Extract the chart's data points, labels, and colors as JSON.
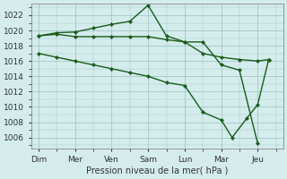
{
  "background_color": "#d4ecec",
  "grid_color": "#a0c8c8",
  "line_color": "#1a5c1a",
  "xlabel": "Pression niveau de la mer( hPa )",
  "xlabels": [
    "Dim",
    "Mer",
    "Ven",
    "Sam",
    "Lun",
    "Mar",
    "Jeu"
  ],
  "ylim": [
    1004.5,
    1023.5
  ],
  "yticks": [
    1006,
    1008,
    1010,
    1012,
    1014,
    1016,
    1018,
    1020,
    1022
  ],
  "line1_x": [
    0,
    0.5,
    1.0,
    1.5,
    2.0,
    2.5,
    3.0,
    3.5,
    4.0,
    4.5,
    5.0,
    5.5,
    6.0
  ],
  "line1_y": [
    1019.3,
    1019.7,
    1019.8,
    1020.3,
    1020.8,
    1021.2,
    1023.3,
    1019.3,
    1018.5,
    1018.5,
    1015.5,
    1014.8,
    1005.2
  ],
  "line2_x": [
    0,
    0.5,
    1.0,
    1.5,
    2.0,
    2.5,
    3.0,
    3.5,
    4.0,
    4.5,
    5.0,
    5.5,
    6.0,
    6.3
  ],
  "line2_y": [
    1019.3,
    1019.5,
    1019.2,
    1019.2,
    1019.2,
    1019.2,
    1019.2,
    1018.8,
    1018.5,
    1017.0,
    1016.5,
    1016.2,
    1016.0,
    1016.2
  ],
  "line3_x": [
    0,
    0.5,
    1.0,
    1.5,
    2.0,
    2.5,
    3.0,
    3.5,
    4.0,
    4.5,
    5.0,
    5.3,
    5.7,
    6.0,
    6.3
  ],
  "line3_y": [
    1017.0,
    1016.5,
    1016.0,
    1015.5,
    1015.0,
    1014.5,
    1014.0,
    1013.2,
    1012.8,
    1009.3,
    1008.3,
    1006.0,
    1008.5,
    1010.3,
    1016.2
  ]
}
